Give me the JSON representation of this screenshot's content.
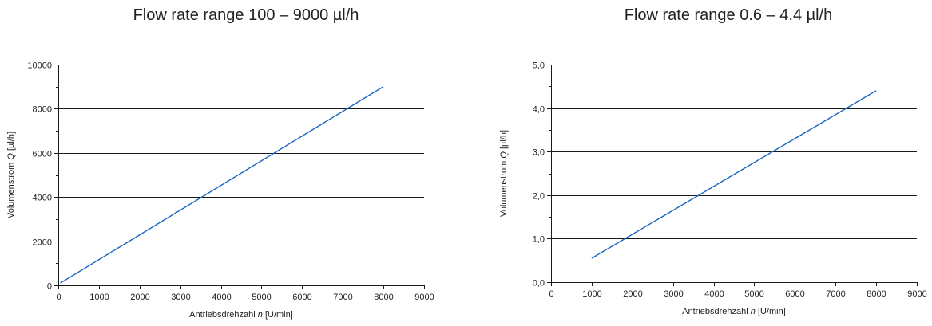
{
  "chart_data": [
    {
      "type": "line",
      "title": "Flow rate range 100 – 9000 µl/h",
      "xlabel_prefix": "Antriebsdrehzahl ",
      "xlabel_var": "n",
      "xlabel_unit": "  [U/min]",
      "ylabel_prefix": "Volumenstrom ",
      "ylabel_var": "Q",
      "ylabel_unit": "  [µl/h]",
      "xlim": [
        0,
        9000
      ],
      "ylim": [
        0,
        10000
      ],
      "x_ticks": [
        "0",
        "1000",
        "2000",
        "3000",
        "4000",
        "5000",
        "6000",
        "7000",
        "8000",
        "9000"
      ],
      "y_ticks": [
        "0",
        "2000",
        "4000",
        "6000",
        "8000",
        "10000"
      ],
      "grid": true,
      "line_color": "#1565c0",
      "series": [
        {
          "x": [
            50,
            8000
          ],
          "y": [
            100,
            9000
          ]
        }
      ]
    },
    {
      "type": "line",
      "title": "Flow rate range 0.6 – 4.4 µl/h",
      "xlabel_prefix": "Antriebsdrehzahl ",
      "xlabel_var": "n",
      "xlabel_unit": "  [U/min]",
      "ylabel_prefix": "Volumenstrom ",
      "ylabel_var": "Q",
      "ylabel_unit": "  [µl/h]",
      "xlim": [
        0,
        9000
      ],
      "ylim": [
        0,
        5
      ],
      "x_ticks": [
        "0",
        "1000",
        "2000",
        "3000",
        "4000",
        "5000",
        "6000",
        "7000",
        "8000",
        "9000"
      ],
      "y_ticks": [
        "0,0",
        "1,0",
        "2,0",
        "3,0",
        "4,0",
        "5,0"
      ],
      "grid": true,
      "line_color": "#1565c0",
      "series": [
        {
          "x": [
            1000,
            8000
          ],
          "y": [
            0.55,
            4.4
          ]
        }
      ]
    }
  ]
}
